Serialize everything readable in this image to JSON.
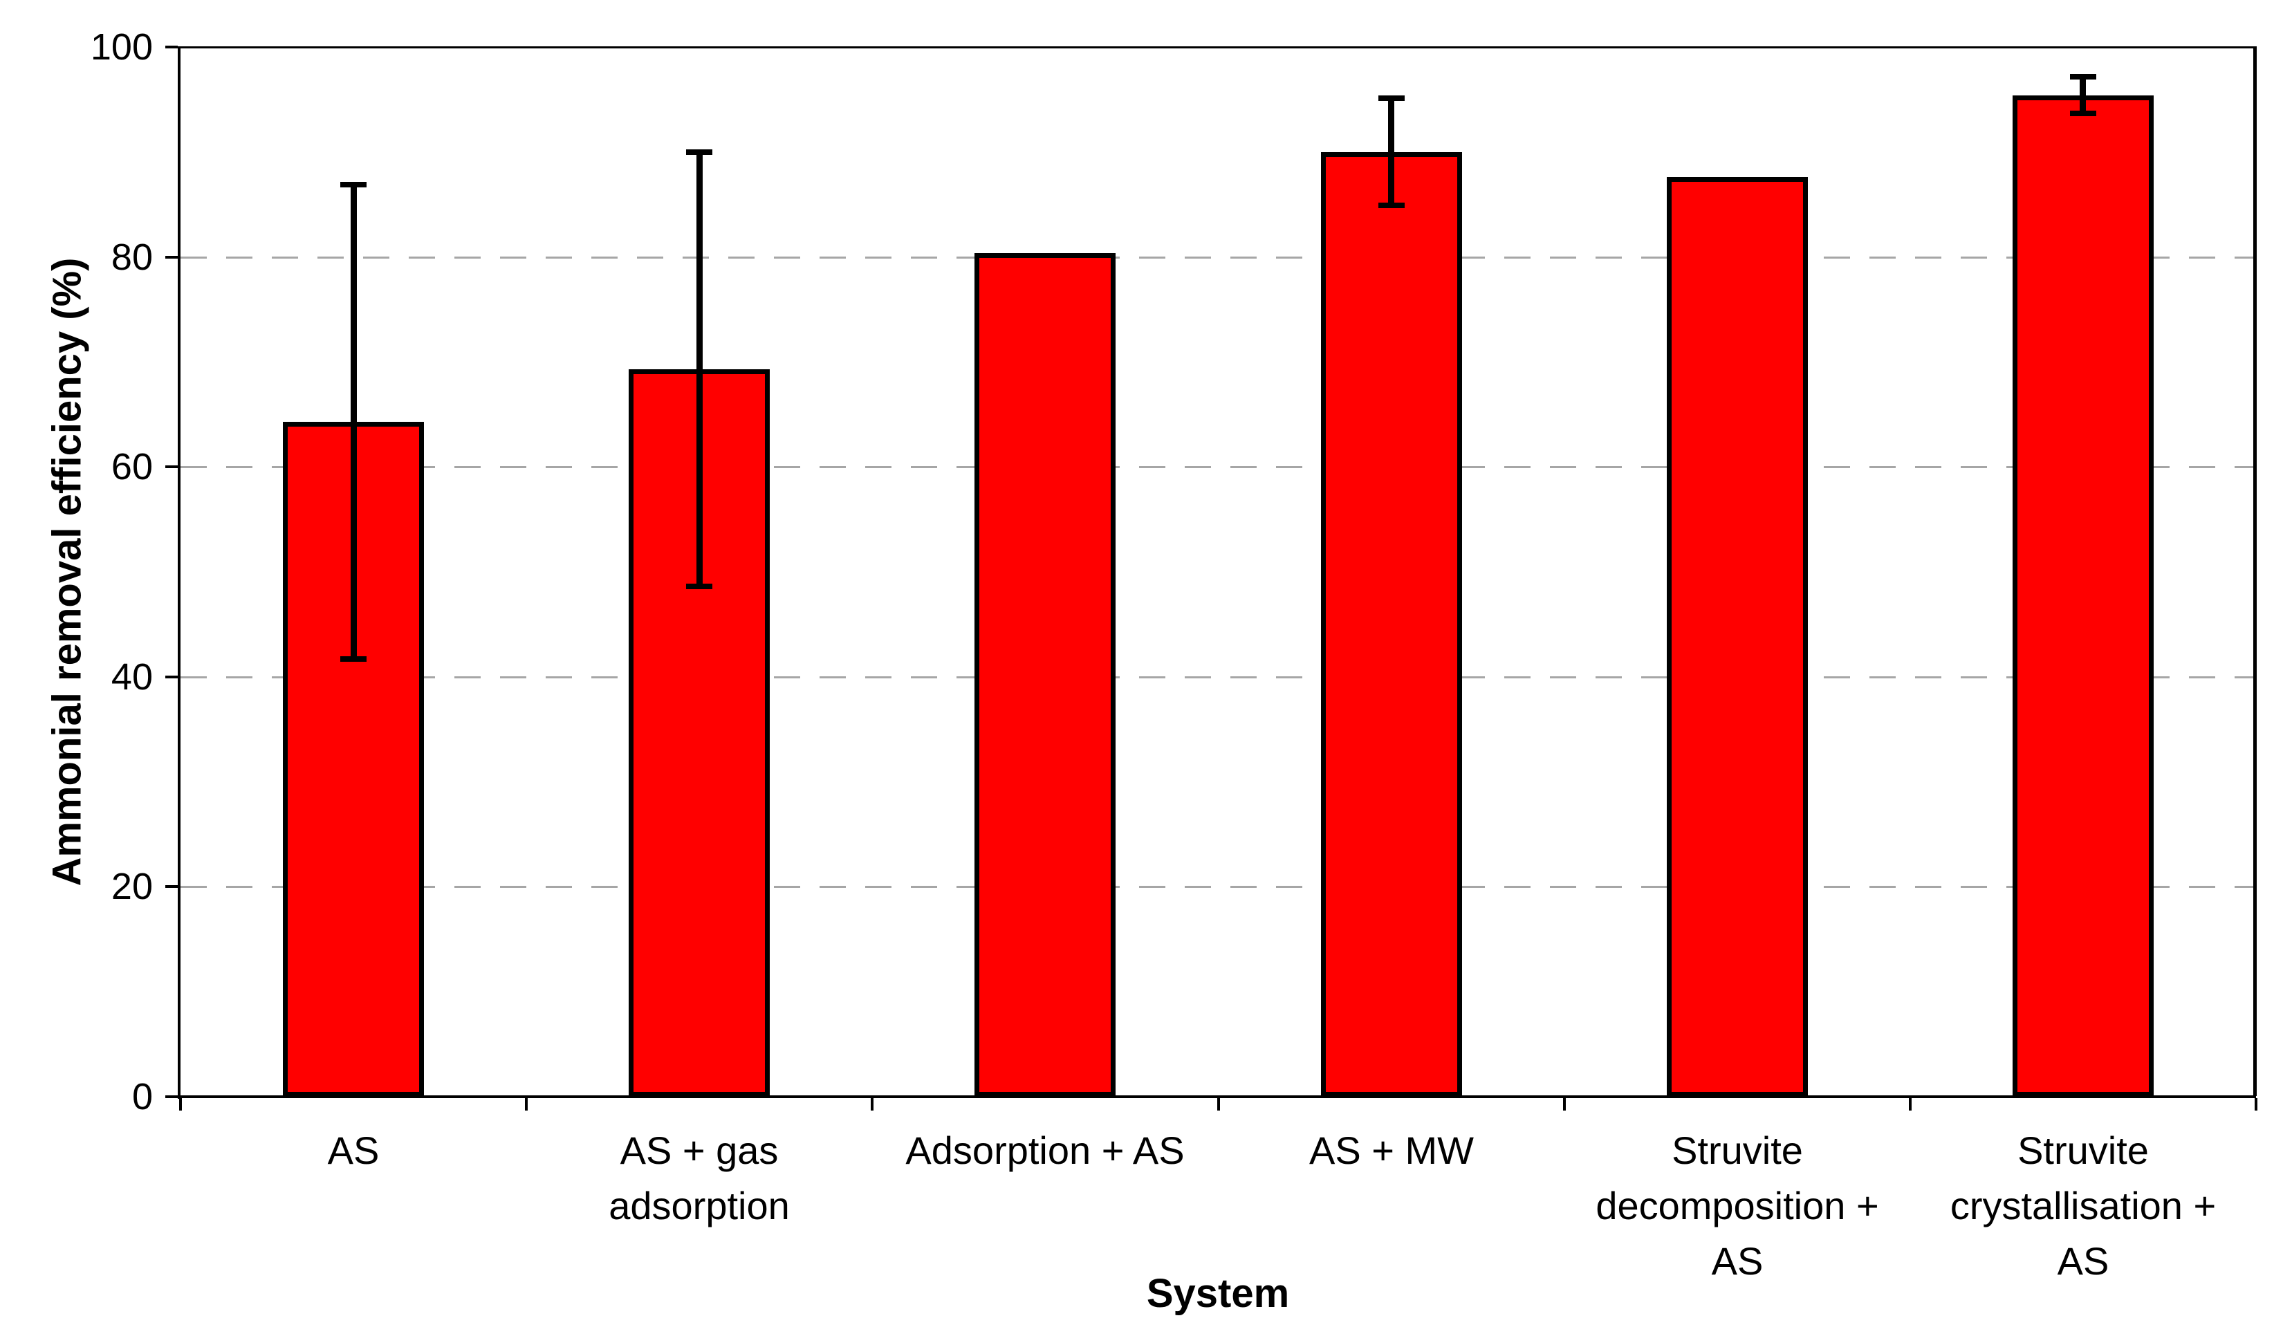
{
  "chart_data": {
    "type": "bar",
    "title": "",
    "xlabel": "System",
    "ylabel": "Ammonial removal efficiency (%)",
    "categories": [
      "AS",
      "AS + gas\nadsorption",
      "Adsorption + AS",
      "AS + MW",
      "Struvite\ndecomposition +\nAS",
      "Struvite\ncrystallisation +\nAS"
    ],
    "values": [
      64.3,
      69.3,
      80.4,
      90.0,
      87.6,
      95.4
    ],
    "error_bars": [
      22.6,
      20.7,
      null,
      5.1,
      null,
      1.75
    ],
    "ylim": [
      0,
      100
    ],
    "yticks": [
      0,
      20,
      40,
      60,
      80,
      100
    ],
    "grid": "horizontal dashed gray gridlines at 20/40/60/80, solid black line at 100 (plot top), solid black right border",
    "legend_position": "none",
    "colors": {
      "bar_fill": "#FF0000",
      "bar_border": "#000000",
      "gridline": "#A6A6A6",
      "axis": "#000000",
      "background": "#FFFFFF"
    }
  }
}
